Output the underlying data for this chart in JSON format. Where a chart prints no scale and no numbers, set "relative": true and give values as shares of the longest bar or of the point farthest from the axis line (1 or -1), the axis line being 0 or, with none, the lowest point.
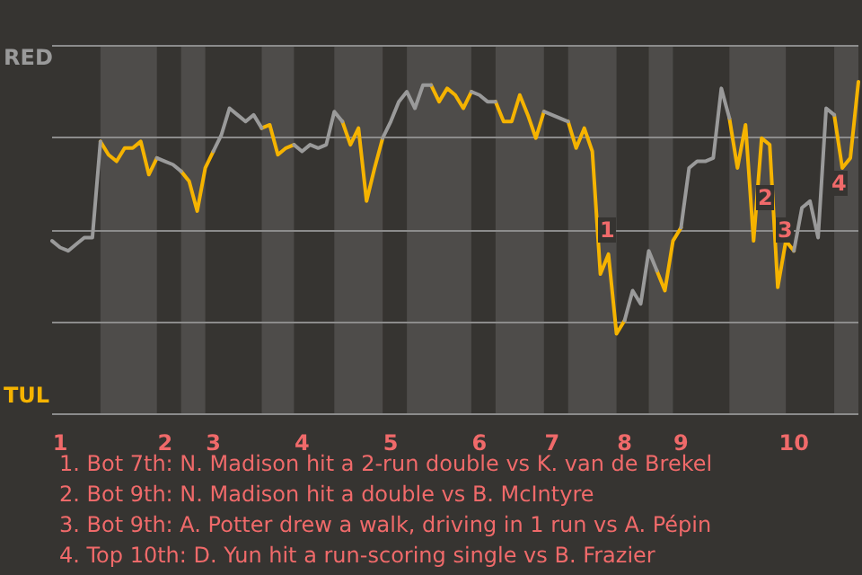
{
  "chart_data": {
    "type": "line",
    "relative": true,
    "categories": [
      null,
      "1",
      null,
      null,
      null,
      null,
      null,
      null,
      null,
      null,
      null,
      null,
      null,
      null,
      "2",
      null,
      null,
      null,
      null,
      null,
      "3",
      null,
      null,
      null,
      null,
      null,
      null,
      null,
      null,
      null,
      null,
      "4",
      null,
      null,
      null,
      null,
      null,
      null,
      null,
      null,
      null,
      null,
      "5",
      null,
      null,
      null,
      null,
      null,
      null,
      null,
      null,
      null,
      null,
      "6",
      null,
      null,
      null,
      null,
      null,
      null,
      null,
      null,
      "7",
      null,
      null,
      null,
      null,
      null,
      null,
      null,
      null,
      "8",
      null,
      null,
      null,
      null,
      null,
      null,
      "9",
      null,
      null,
      null,
      null,
      null,
      null,
      null,
      null,
      null,
      null,
      null,
      null,
      null,
      "10",
      null,
      null,
      null,
      null,
      null,
      null,
      null,
      null
    ],
    "grid": "y",
    "marker": "none",
    "line_style": "solid",
    "series": [
      {
        "color": "#9a9a9a",
        "values": [
          0.52,
          0.5,
          0.49,
          0.51,
          0.53,
          0.53,
          0.82,
          null,
          null,
          null,
          null,
          null,
          null,
          0.77,
          0.76,
          0.75,
          0.73,
          null,
          null,
          null,
          0.79,
          0.84,
          0.92,
          0.9,
          0.88,
          0.9,
          0.86,
          null,
          null,
          null,
          0.81,
          0.79,
          0.81,
          0.8,
          0.81,
          0.91,
          0.88,
          null,
          null,
          null,
          null,
          0.83,
          0.88,
          0.94,
          0.97,
          0.92,
          0.99,
          0.99,
          null,
          null,
          null,
          null,
          0.97,
          0.96,
          0.94,
          0.94,
          null,
          null,
          null,
          null,
          null,
          0.91,
          0.9,
          0.89,
          0.88,
          null,
          null,
          null,
          null,
          null,
          null,
          0.28,
          0.37,
          0.33,
          0.49,
          0.43,
          null,
          null,
          0.56,
          0.74,
          0.76,
          0.76,
          0.77,
          0.98,
          0.89,
          null,
          null,
          null,
          null,
          null,
          null,
          null,
          0.49,
          0.62,
          0.64,
          0.53,
          0.92,
          0.9,
          null,
          null,
          null
        ]
      },
      {
        "color": "#f5b300",
        "values": [
          null,
          null,
          null,
          null,
          null,
          null,
          0.82,
          0.78,
          0.76,
          0.8,
          0.8,
          0.82,
          0.72,
          0.77,
          null,
          null,
          0.73,
          0.7,
          0.61,
          0.74,
          0.79,
          null,
          null,
          null,
          null,
          null,
          0.86,
          0.87,
          0.78,
          0.8,
          0.81,
          null,
          null,
          null,
          null,
          null,
          0.88,
          0.81,
          0.86,
          0.64,
          0.74,
          0.83,
          null,
          null,
          null,
          null,
          null,
          0.99,
          0.94,
          0.98,
          0.96,
          0.92,
          0.97,
          null,
          null,
          0.94,
          0.88,
          0.88,
          0.96,
          0.9,
          0.83,
          0.91,
          null,
          null,
          0.88,
          0.8,
          0.86,
          0.79,
          0.42,
          0.48,
          0.24,
          0.28,
          null,
          null,
          null,
          0.43,
          0.37,
          0.52,
          0.56,
          null,
          null,
          null,
          null,
          null,
          0.89,
          0.74,
          0.87,
          0.52,
          0.83,
          0.81,
          0.38,
          0.52,
          0.49,
          null,
          null,
          null,
          null,
          0.9,
          0.74,
          0.77,
          1
        ]
      }
    ],
    "annotations": [
      "RED",
      "TUL",
      "1",
      "2",
      "3",
      "4",
      "1. Bot 7th: N. Madison hit a 2-run double vs K. van de Brekel",
      "2. Bot 9th: N. Madison hit a double vs B. McIntyre",
      "3. Bot 9th: A. Potter drew a walk, driving in 1 run vs A. Pépin",
      "4. Top 10th: D. Yun hit a run-scoring single vs B. Frazier"
    ]
  }
}
